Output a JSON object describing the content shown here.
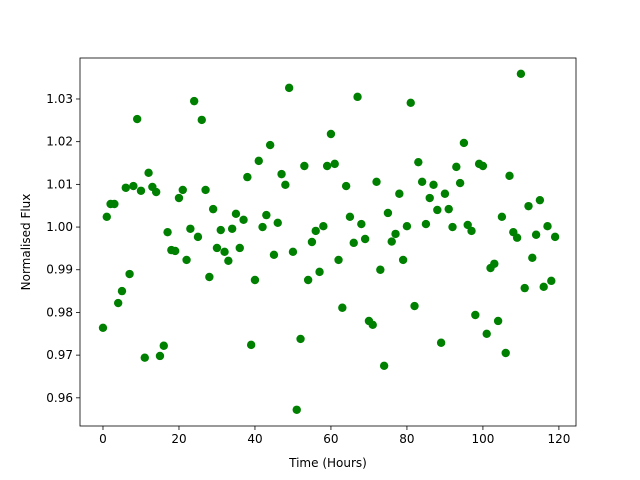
{
  "chart_data": {
    "type": "scatter",
    "xlabel": "Time (Hours)",
    "ylabel": "Normalised Flux",
    "series": [
      {
        "color": "#008000",
        "x": [
          0,
          1,
          2,
          3,
          4,
          5,
          6,
          7,
          8,
          9,
          10,
          11,
          12,
          13,
          14,
          15,
          16,
          17,
          18,
          19,
          20,
          21,
          22,
          23,
          24,
          25,
          26,
          27,
          28,
          29,
          30,
          31,
          32,
          33,
          34,
          35,
          36,
          37,
          38,
          39,
          40,
          41,
          42,
          43,
          44,
          45,
          46,
          47,
          48,
          49,
          50,
          51,
          52,
          53,
          54,
          55,
          56,
          57,
          58,
          59,
          60,
          61,
          62,
          63,
          64,
          65,
          66,
          67,
          68,
          69,
          70,
          71,
          72,
          73,
          74,
          75,
          76,
          77,
          78,
          79,
          80,
          81,
          82,
          83,
          84,
          85,
          86,
          87,
          88,
          89,
          90,
          91,
          92,
          93,
          94,
          95,
          96,
          97,
          98,
          99,
          100,
          101,
          102,
          103,
          104,
          105,
          106,
          107,
          108,
          109,
          110,
          111,
          112,
          113,
          114,
          115,
          116,
          117,
          118,
          119
        ],
        "values": [
          0.9764,
          1.0024,
          1.0054,
          1.0054,
          0.9822,
          0.985,
          1.0092,
          0.989,
          1.0096,
          1.0253,
          1.0085,
          0.9694,
          1.0127,
          1.0094,
          1.0082,
          0.9698,
          0.9722,
          0.9988,
          0.9946,
          0.9944,
          1.0068,
          1.0087,
          0.9923,
          0.9996,
          1.0295,
          0.9977,
          1.0251,
          1.0087,
          0.9883,
          1.0042,
          0.9951,
          0.9993,
          0.9942,
          0.9921,
          0.9996,
          1.0031,
          0.9951,
          1.0017,
          1.0117,
          0.9724,
          0.9876,
          1.0155,
          1.0,
          1.0028,
          1.0192,
          0.9935,
          1.001,
          1.0124,
          1.0099,
          1.0326,
          0.9942,
          0.9572,
          0.9738,
          1.0143,
          0.9876,
          0.9965,
          0.9991,
          0.9895,
          1.0002,
          1.0143,
          1.0218,
          1.0148,
          0.9923,
          0.9811,
          1.0096,
          1.0024,
          0.9963,
          1.0305,
          1.0007,
          0.9972,
          0.978,
          0.9771,
          1.0106,
          0.99,
          0.9675,
          1.0033,
          0.9966,
          0.9984,
          1.0078,
          0.9923,
          1.0002,
          1.0291,
          0.9815,
          1.0152,
          1.0106,
          1.0007,
          1.0068,
          1.0099,
          1.004,
          0.9729,
          1.0078,
          1.0042,
          1.0,
          1.0141,
          1.0103,
          1.0197,
          1.0005,
          0.9991,
          0.9794,
          1.0148,
          1.0143,
          0.975,
          0.9904,
          0.9914,
          0.978,
          1.0024,
          0.9705,
          1.012,
          0.9988,
          0.9975,
          1.0359,
          0.9857,
          1.0049,
          0.9928,
          0.9982,
          1.0063,
          0.986,
          1.0002,
          0.9874,
          0.9977
        ]
      }
    ],
    "xlim": [
      -6.05,
      124.5
    ],
    "xticks": [
      0,
      20,
      40,
      60,
      80,
      100,
      120
    ],
    "ylim": [
      0.9534,
      1.0396
    ],
    "yticks": [
      0.96,
      0.97,
      0.98,
      0.99,
      {
        "value": 1.0,
        "label": "1.00"
      },
      1.01,
      1.02,
      1.03
    ]
  }
}
